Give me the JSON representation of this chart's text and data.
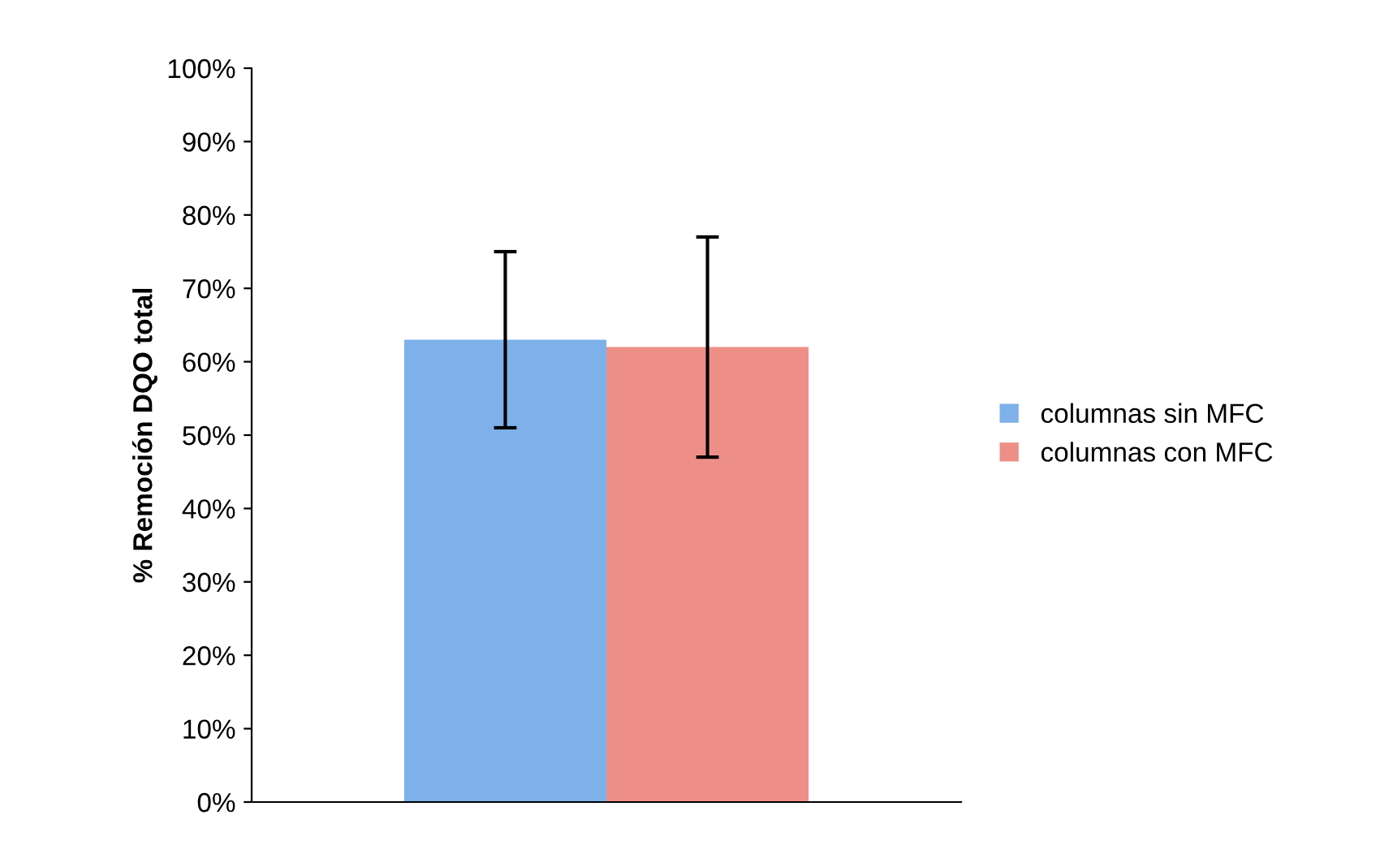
{
  "chart_data": {
    "type": "bar",
    "ylabel": "% Remoción DQO total",
    "categories": [
      null
    ],
    "series": [
      {
        "name": "columnas sin MFC",
        "color": "#7eb1ea",
        "values": [
          63
        ],
        "errors": [
          [
            51,
            75
          ]
        ]
      },
      {
        "name": "columnas con MFC",
        "color": "#ee8f87",
        "values": [
          62
        ],
        "errors": [
          [
            47,
            77
          ]
        ]
      }
    ],
    "ylim": [
      0,
      100
    ],
    "yticks": [
      {
        "value": 0,
        "label": "0%"
      },
      {
        "value": 10,
        "label": "10%"
      },
      {
        "value": 20,
        "label": "20%"
      },
      {
        "value": 30,
        "label": "30%"
      },
      {
        "value": 40,
        "label": "40%"
      },
      {
        "value": 50,
        "label": "50%"
      },
      {
        "value": 60,
        "label": "60%"
      },
      {
        "value": 70,
        "label": "70%"
      },
      {
        "value": 80,
        "label": "80%"
      },
      {
        "value": 90,
        "label": "90%"
      },
      {
        "value": 100,
        "label": "100%"
      }
    ],
    "grid": false,
    "legend": "right"
  }
}
